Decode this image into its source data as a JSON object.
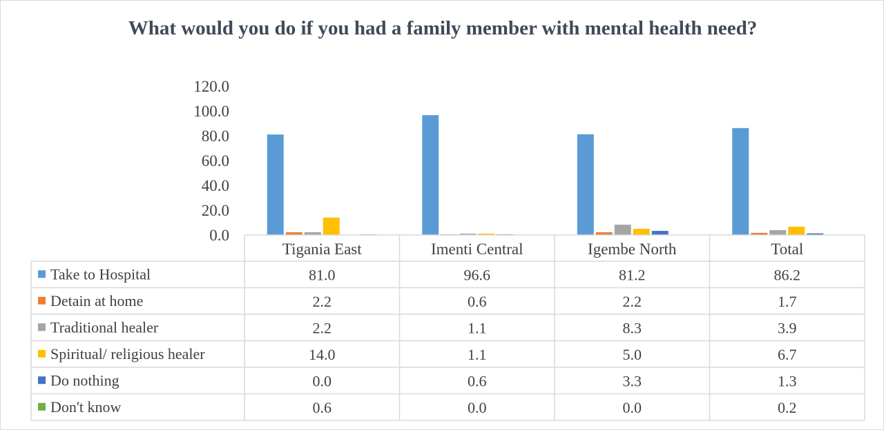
{
  "chart_data": {
    "type": "bar",
    "title": "What would you do if you had a family member with mental health need?",
    "xlabel": "",
    "ylabel": "",
    "ylim": [
      0,
      120
    ],
    "yticks": [
      "0.0",
      "20.0",
      "40.0",
      "60.0",
      "80.0",
      "100.0",
      "120.0"
    ],
    "grid": false,
    "legend": "data-table",
    "categories": [
      "Tigania East",
      "Imenti Central",
      "Igembe North",
      "Total"
    ],
    "series": [
      {
        "name": "Take to Hospital",
        "color": "#5b9bd5",
        "values": [
          81.0,
          96.6,
          81.2,
          86.2
        ],
        "labels": [
          "81.0",
          "96.6",
          "81.2",
          "86.2"
        ]
      },
      {
        "name": "Detain at home",
        "color": "#ed7d31",
        "values": [
          2.2,
          0.6,
          2.2,
          1.7
        ],
        "labels": [
          "2.2",
          "0.6",
          "2.2",
          "1.7"
        ]
      },
      {
        "name": "Traditional healer",
        "color": "#a5a5a5",
        "values": [
          2.2,
          1.1,
          8.3,
          3.9
        ],
        "labels": [
          "2.2",
          "1.1",
          "8.3",
          "3.9"
        ]
      },
      {
        "name": "Spiritual/ religious healer",
        "color": "#ffc000",
        "values": [
          14.0,
          1.1,
          5.0,
          6.7
        ],
        "labels": [
          "14.0",
          "1.1",
          "5.0",
          "6.7"
        ]
      },
      {
        "name": "Do nothing",
        "color": "#4472c4",
        "values": [
          0.0,
          0.6,
          3.3,
          1.3
        ],
        "labels": [
          "0.0",
          "0.6",
          "3.3",
          "1.3"
        ]
      },
      {
        "name": "Don't know",
        "color": "#70ad47",
        "values": [
          0.6,
          0.0,
          0.0,
          0.2
        ],
        "labels": [
          "0.6",
          "0.0",
          "0.0",
          "0.2"
        ]
      }
    ]
  }
}
